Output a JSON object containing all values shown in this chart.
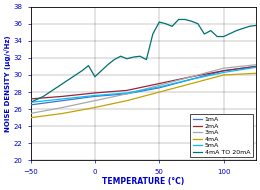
{
  "title": "",
  "xlabel": "TEMPERATURE (°C)",
  "ylabel": "NOISE DENSITY (μg/√Hz)",
  "xlim": [
    -50,
    125
  ],
  "ylim": [
    20,
    38
  ],
  "xticks": [
    -50,
    0,
    50,
    100
  ],
  "yticks": [
    20,
    22,
    24,
    26,
    28,
    30,
    32,
    34,
    36,
    38
  ],
  "series": {
    "1mA": {
      "color": "#4472C4",
      "x": [
        -50,
        -25,
        0,
        25,
        50,
        75,
        100,
        125
      ],
      "y": [
        26.5,
        27.0,
        27.5,
        27.8,
        28.5,
        29.5,
        30.5,
        31.0
      ]
    },
    "2mA": {
      "color": "#9B2335",
      "x": [
        -50,
        -25,
        0,
        25,
        50,
        75,
        100,
        125
      ],
      "y": [
        27.2,
        27.5,
        27.9,
        28.2,
        29.0,
        29.8,
        30.5,
        31.0
      ]
    },
    "3mA": {
      "color": "#A9A9A9",
      "x": [
        -50,
        -25,
        0,
        25,
        50,
        75,
        100,
        125
      ],
      "y": [
        25.5,
        26.2,
        27.0,
        27.8,
        28.8,
        29.8,
        30.8,
        31.2
      ]
    },
    "4mA": {
      "color": "#C8A000",
      "x": [
        -50,
        -25,
        0,
        25,
        50,
        75,
        100,
        125
      ],
      "y": [
        25.0,
        25.5,
        26.2,
        27.0,
        28.0,
        29.0,
        30.0,
        30.2
      ]
    },
    "5mA": {
      "color": "#00BFFF",
      "x": [
        -50,
        -25,
        0,
        25,
        50,
        75,
        100,
        125
      ],
      "y": [
        26.8,
        27.2,
        27.6,
        27.9,
        28.6,
        29.5,
        30.3,
        30.9
      ]
    },
    "4mA TO 20mA": {
      "color": "#007070",
      "x": [
        -50,
        -40,
        -30,
        -20,
        -10,
        -5,
        0,
        5,
        10,
        15,
        20,
        25,
        30,
        35,
        40,
        45,
        50,
        55,
        60,
        65,
        70,
        75,
        80,
        85,
        90,
        95,
        100,
        110,
        120,
        125
      ],
      "y": [
        26.8,
        27.5,
        28.5,
        29.5,
        30.5,
        31.1,
        29.8,
        30.5,
        31.2,
        31.8,
        32.2,
        31.9,
        32.1,
        32.2,
        31.8,
        34.8,
        36.2,
        36.0,
        35.7,
        36.5,
        36.5,
        36.3,
        36.0,
        34.8,
        35.2,
        34.5,
        34.5,
        35.2,
        35.7,
        35.8
      ]
    }
  },
  "legend_labels": [
    "1mA",
    "2mA",
    "3mA",
    "4mA",
    "5mA",
    "4mA TO 20mA"
  ],
  "bg_color": "#ffffff",
  "label_color": "#0000CC",
  "tick_color": "#0000CC"
}
